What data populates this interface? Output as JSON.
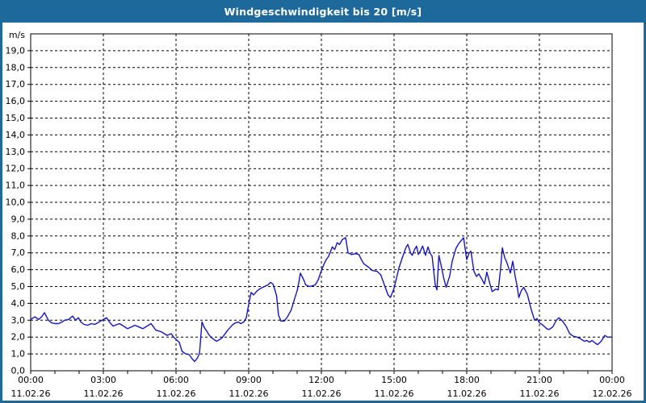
{
  "window": {
    "title": "Windgeschwindigkeit bis 20 [m/s]"
  },
  "colors": {
    "titlebar_bg": "#1D699C",
    "frame_border": "#1D699C",
    "plot_background": "#FFFFFF",
    "plot_frame": "#000000",
    "gridline": "#000000",
    "tick": "#000000",
    "label_text": "#000000",
    "line": "#1414C8",
    "title_text": "#FFFFFF"
  },
  "chart_data": {
    "type": "line",
    "title": "Windgeschwindigkeit bis 20 [m/s]",
    "ylabel": "m/s",
    "xlabel": "",
    "ylim": [
      0,
      20
    ],
    "xlim_hours": [
      0,
      24
    ],
    "grid": true,
    "grid_style": "dashed",
    "legend": "none",
    "ytick_step": 1,
    "ytick_labels": [
      "0,0",
      "1,0",
      "2,0",
      "3,0",
      "4,0",
      "5,0",
      "6,0",
      "7,0",
      "8,0",
      "9,0",
      "10,0",
      "11,0",
      "12,0",
      "13,0",
      "14,0",
      "15,0",
      "16,0",
      "17,0",
      "18,0",
      "19,0"
    ],
    "x_minor_tick_hours": 1,
    "x_major_ticks": [
      {
        "hours": 0,
        "time": "00:00",
        "date": "11.02.26"
      },
      {
        "hours": 3,
        "time": "03:00",
        "date": "11.02.26"
      },
      {
        "hours": 6,
        "time": "06:00",
        "date": "11.02.26"
      },
      {
        "hours": 9,
        "time": "09:00",
        "date": "11.02.26"
      },
      {
        "hours": 12,
        "time": "12:00",
        "date": "11.02.26"
      },
      {
        "hours": 15,
        "time": "15:00",
        "date": "11.02.26"
      },
      {
        "hours": 18,
        "time": "18:00",
        "date": "11.02.26"
      },
      {
        "hours": 21,
        "time": "21:00",
        "date": "11.02.26"
      },
      {
        "hours": 24,
        "time": "00:00",
        "date": "12.02.26"
      }
    ],
    "series": [
      {
        "unit": "m/s",
        "points": [
          [
            0.0,
            3.05
          ],
          [
            0.17,
            3.2
          ],
          [
            0.33,
            3.05
          ],
          [
            0.45,
            3.2
          ],
          [
            0.57,
            3.45
          ],
          [
            0.73,
            3.0
          ],
          [
            0.85,
            2.85
          ],
          [
            1.0,
            2.8
          ],
          [
            1.15,
            2.8
          ],
          [
            1.3,
            2.9
          ],
          [
            1.4,
            3.0
          ],
          [
            1.57,
            3.05
          ],
          [
            1.73,
            3.25
          ],
          [
            1.85,
            3.0
          ],
          [
            1.97,
            3.15
          ],
          [
            2.07,
            2.9
          ],
          [
            2.2,
            2.75
          ],
          [
            2.35,
            2.7
          ],
          [
            2.5,
            2.8
          ],
          [
            2.65,
            2.75
          ],
          [
            2.83,
            2.9
          ],
          [
            3.0,
            3.05
          ],
          [
            3.13,
            3.15
          ],
          [
            3.25,
            2.9
          ],
          [
            3.4,
            2.65
          ],
          [
            3.57,
            2.75
          ],
          [
            3.67,
            2.8
          ],
          [
            3.83,
            2.65
          ],
          [
            4.0,
            2.5
          ],
          [
            4.15,
            2.6
          ],
          [
            4.3,
            2.7
          ],
          [
            4.47,
            2.6
          ],
          [
            4.63,
            2.5
          ],
          [
            4.8,
            2.65
          ],
          [
            4.97,
            2.8
          ],
          [
            5.17,
            2.4
          ],
          [
            5.33,
            2.35
          ],
          [
            5.47,
            2.25
          ],
          [
            5.63,
            2.1
          ],
          [
            5.8,
            2.2
          ],
          [
            5.9,
            2.0
          ],
          [
            6.0,
            1.85
          ],
          [
            6.13,
            1.7
          ],
          [
            6.25,
            1.15
          ],
          [
            6.4,
            1.0
          ],
          [
            6.55,
            0.95
          ],
          [
            6.67,
            0.7
          ],
          [
            6.77,
            0.55
          ],
          [
            6.9,
            0.8
          ],
          [
            6.97,
            1.05
          ],
          [
            7.07,
            2.9
          ],
          [
            7.17,
            2.55
          ],
          [
            7.25,
            2.4
          ],
          [
            7.35,
            2.15
          ],
          [
            7.47,
            1.95
          ],
          [
            7.57,
            1.85
          ],
          [
            7.67,
            1.75
          ],
          [
            7.8,
            1.85
          ],
          [
            7.9,
            1.95
          ],
          [
            8.0,
            2.15
          ],
          [
            8.13,
            2.4
          ],
          [
            8.25,
            2.6
          ],
          [
            8.35,
            2.75
          ],
          [
            8.47,
            2.85
          ],
          [
            8.57,
            2.9
          ],
          [
            8.67,
            2.8
          ],
          [
            8.8,
            2.9
          ],
          [
            8.9,
            3.15
          ],
          [
            9.0,
            3.95
          ],
          [
            9.1,
            4.65
          ],
          [
            9.2,
            4.5
          ],
          [
            9.35,
            4.75
          ],
          [
            9.5,
            4.9
          ],
          [
            9.65,
            5.0
          ],
          [
            9.8,
            5.1
          ],
          [
            9.9,
            5.25
          ],
          [
            10.0,
            5.15
          ],
          [
            10.07,
            4.85
          ],
          [
            10.15,
            4.45
          ],
          [
            10.23,
            3.3
          ],
          [
            10.33,
            2.95
          ],
          [
            10.47,
            2.95
          ],
          [
            10.6,
            3.2
          ],
          [
            10.75,
            3.6
          ],
          [
            10.9,
            4.3
          ],
          [
            11.0,
            4.75
          ],
          [
            11.07,
            5.25
          ],
          [
            11.13,
            5.8
          ],
          [
            11.2,
            5.6
          ],
          [
            11.27,
            5.4
          ],
          [
            11.35,
            5.1
          ],
          [
            11.5,
            5.0
          ],
          [
            11.63,
            5.05
          ],
          [
            11.75,
            5.1
          ],
          [
            11.87,
            5.4
          ],
          [
            12.0,
            5.95
          ],
          [
            12.1,
            6.3
          ],
          [
            12.2,
            6.6
          ],
          [
            12.3,
            6.8
          ],
          [
            12.45,
            7.35
          ],
          [
            12.55,
            7.2
          ],
          [
            12.65,
            7.6
          ],
          [
            12.75,
            7.5
          ],
          [
            12.87,
            7.8
          ],
          [
            13.0,
            7.9
          ],
          [
            13.1,
            7.0
          ],
          [
            13.25,
            6.9
          ],
          [
            13.4,
            6.95
          ],
          [
            13.55,
            6.9
          ],
          [
            13.65,
            6.6
          ],
          [
            13.75,
            6.35
          ],
          [
            13.95,
            6.15
          ],
          [
            14.1,
            5.95
          ],
          [
            14.3,
            5.9
          ],
          [
            14.45,
            5.7
          ],
          [
            14.6,
            5.1
          ],
          [
            14.75,
            4.5
          ],
          [
            14.85,
            4.35
          ],
          [
            15.0,
            4.9
          ],
          [
            15.1,
            5.5
          ],
          [
            15.2,
            6.1
          ],
          [
            15.35,
            6.75
          ],
          [
            15.5,
            7.35
          ],
          [
            15.57,
            7.5
          ],
          [
            15.68,
            7.0
          ],
          [
            15.75,
            6.85
          ],
          [
            15.85,
            7.2
          ],
          [
            15.93,
            7.4
          ],
          [
            16.0,
            6.9
          ],
          [
            16.1,
            7.15
          ],
          [
            16.18,
            7.4
          ],
          [
            16.3,
            6.85
          ],
          [
            16.4,
            7.35
          ],
          [
            16.5,
            6.95
          ],
          [
            16.57,
            6.8
          ],
          [
            16.7,
            5.1
          ],
          [
            16.77,
            4.8
          ],
          [
            16.85,
            6.85
          ],
          [
            16.95,
            6.2
          ],
          [
            17.05,
            5.5
          ],
          [
            17.15,
            4.95
          ],
          [
            17.3,
            5.65
          ],
          [
            17.4,
            6.5
          ],
          [
            17.55,
            7.25
          ],
          [
            17.67,
            7.55
          ],
          [
            17.87,
            7.9
          ],
          [
            18.0,
            6.6
          ],
          [
            18.1,
            7.0
          ],
          [
            18.17,
            7.1
          ],
          [
            18.3,
            5.9
          ],
          [
            18.4,
            5.6
          ],
          [
            18.5,
            5.75
          ],
          [
            18.6,
            5.5
          ],
          [
            18.73,
            5.15
          ],
          [
            18.83,
            5.85
          ],
          [
            18.95,
            5.2
          ],
          [
            19.05,
            4.7
          ],
          [
            19.2,
            4.85
          ],
          [
            19.3,
            4.8
          ],
          [
            19.4,
            6.1
          ],
          [
            19.47,
            7.3
          ],
          [
            19.57,
            6.7
          ],
          [
            19.65,
            6.45
          ],
          [
            19.8,
            5.8
          ],
          [
            19.9,
            6.5
          ],
          [
            20.0,
            5.6
          ],
          [
            20.07,
            5.1
          ],
          [
            20.15,
            4.35
          ],
          [
            20.25,
            4.75
          ],
          [
            20.35,
            4.95
          ],
          [
            20.5,
            4.55
          ],
          [
            20.65,
            3.7
          ],
          [
            20.8,
            3.0
          ],
          [
            20.9,
            3.1
          ],
          [
            21.0,
            2.85
          ],
          [
            21.15,
            2.7
          ],
          [
            21.3,
            2.5
          ],
          [
            21.4,
            2.45
          ],
          [
            21.55,
            2.6
          ],
          [
            21.7,
            3.0
          ],
          [
            21.8,
            3.15
          ],
          [
            21.95,
            2.95
          ],
          [
            22.1,
            2.65
          ],
          [
            22.25,
            2.2
          ],
          [
            22.4,
            2.05
          ],
          [
            22.55,
            2.0
          ],
          [
            22.7,
            1.9
          ],
          [
            22.85,
            1.75
          ],
          [
            22.95,
            1.8
          ],
          [
            23.07,
            1.7
          ],
          [
            23.17,
            1.8
          ],
          [
            23.3,
            1.65
          ],
          [
            23.4,
            1.55
          ],
          [
            23.55,
            1.75
          ],
          [
            23.7,
            2.1
          ],
          [
            23.8,
            2.0
          ],
          [
            23.97,
            2.0
          ]
        ]
      }
    ]
  }
}
